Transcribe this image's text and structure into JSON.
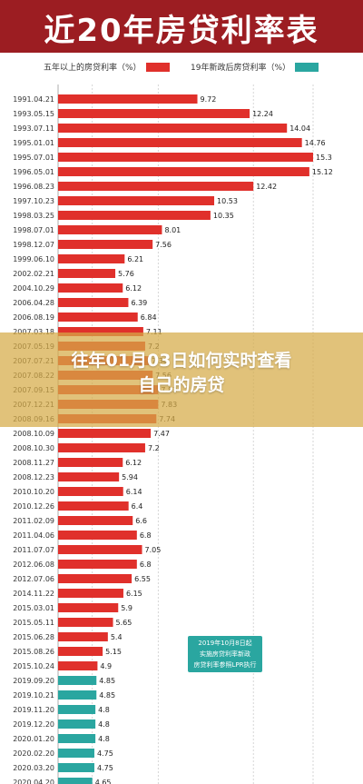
{
  "header": {
    "title": "近20年房贷利率表"
  },
  "legend": {
    "items": [
      {
        "label": "五年以上的房贷利率（%）",
        "color": "#e0302b"
      },
      {
        "label": "19年新政后房贷利率（%）",
        "color": "#2aa6a0"
      }
    ]
  },
  "overlay": {
    "line1": "往年01月03日如何实时查看",
    "line2": "自己的房贷"
  },
  "note": {
    "line1": "2019年10月8日起",
    "line2": "实施房贷利率新政",
    "line3": "房贷利率参照LPR执行"
  },
  "colors": {
    "red": "#e0302b",
    "teal": "#2aa6a0",
    "banner": "#9c1d22"
  },
  "chart_data": {
    "type": "bar",
    "orientation": "horizontal",
    "xlim": [
      3.0,
      15.3
    ],
    "x_ticks": [
      "4.65",
      "7.83",
      "12.42",
      "15.3"
    ],
    "grid": true,
    "categories": [
      "1991.04.21",
      "1993.05.15",
      "1993.07.11",
      "1995.01.01",
      "1995.07.01",
      "1996.05.01",
      "1996.08.23",
      "1997.10.23",
      "1998.03.25",
      "1998.07.01",
      "1998.12.07",
      "1999.06.10",
      "2002.02.21",
      "2004.10.29",
      "2006.04.28",
      "2006.08.19",
      "2007.03.18",
      "2007.05.19",
      "2007.07.21",
      "2007.08.22",
      "2007.09.15",
      "2007.12.21",
      "2008.09.16",
      "2008.10.09",
      "2008.10.30",
      "2008.11.27",
      "2008.12.23",
      "2010.10.20",
      "2010.12.26",
      "2011.02.09",
      "2011.04.06",
      "2011.07.07",
      "2012.06.08",
      "2012.07.06",
      "2014.11.22",
      "2015.03.01",
      "2015.05.11",
      "2015.06.28",
      "2015.08.26",
      "2015.10.24",
      "2019.09.20",
      "2019.10.21",
      "2019.11.20",
      "2019.12.20",
      "2020.01.20",
      "2020.02.20",
      "2020.03.20",
      "2020.04.20"
    ],
    "values": [
      9.72,
      12.24,
      14.04,
      14.76,
      15.3,
      15.12,
      12.42,
      10.53,
      10.35,
      8.01,
      7.56,
      6.21,
      5.76,
      6.12,
      6.39,
      6.84,
      7.11,
      7.2,
      7.38,
      7.56,
      7.83,
      7.83,
      7.74,
      7.47,
      7.2,
      6.12,
      5.94,
      6.14,
      6.4,
      6.6,
      6.8,
      7.05,
      6.8,
      6.55,
      6.15,
      5.9,
      5.65,
      5.4,
      5.15,
      4.9,
      4.85,
      4.85,
      4.8,
      4.8,
      4.8,
      4.75,
      4.75,
      4.65
    ],
    "value_labels": [
      "9.72",
      "12.24",
      "14.04",
      "14.76",
      "15.3",
      "15.12",
      "12.42",
      "10.53",
      "10.35",
      "8.01",
      "7.56",
      "6.21",
      "5.76",
      "6.12",
      "6.39",
      "6.84",
      "7.11",
      "7.2",
      "7.38",
      "7.56",
      "7.83",
      "7.83",
      "7.74",
      "7.47",
      "7.2",
      "6.12",
      "5.94",
      "6.14",
      "6.4",
      "6.6",
      "6.8",
      "7.05",
      "6.8",
      "6.55",
      "6.15",
      "5.9",
      "5.65",
      "5.4",
      "5.15",
      "4.9",
      "4.85",
      "4.85",
      "4.8",
      "4.8",
      "4.8",
      "4.75",
      "4.75",
      "4.65"
    ],
    "series_index": [
      0,
      0,
      0,
      0,
      0,
      0,
      0,
      0,
      0,
      0,
      0,
      0,
      0,
      0,
      0,
      0,
      0,
      0,
      0,
      0,
      0,
      0,
      0,
      0,
      0,
      0,
      0,
      0,
      0,
      0,
      0,
      0,
      0,
      0,
      0,
      0,
      0,
      0,
      0,
      0,
      1,
      1,
      1,
      1,
      1,
      1,
      1,
      1
    ]
  }
}
